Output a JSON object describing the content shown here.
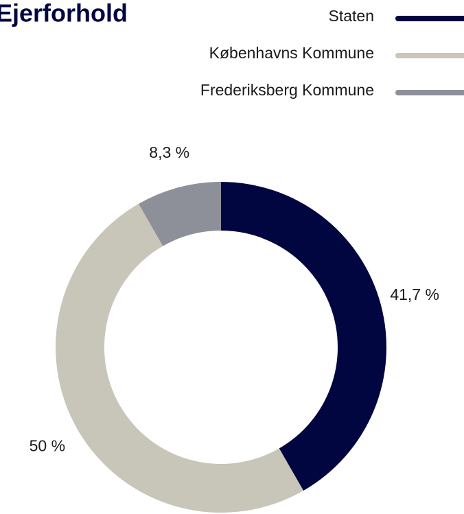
{
  "chart_data": {
    "type": "pie",
    "title": "Ejerforhold",
    "categories": [
      "Staten",
      "Københavns Kommune",
      "Frederiksberg Kommune"
    ],
    "values": [
      41.7,
      50,
      8.3
    ],
    "value_labels": [
      "41,7 %",
      "50 %",
      "8,3 %"
    ],
    "colors": [
      "#020640",
      "#c8c6b8",
      "#8e9099"
    ],
    "donut": true
  }
}
